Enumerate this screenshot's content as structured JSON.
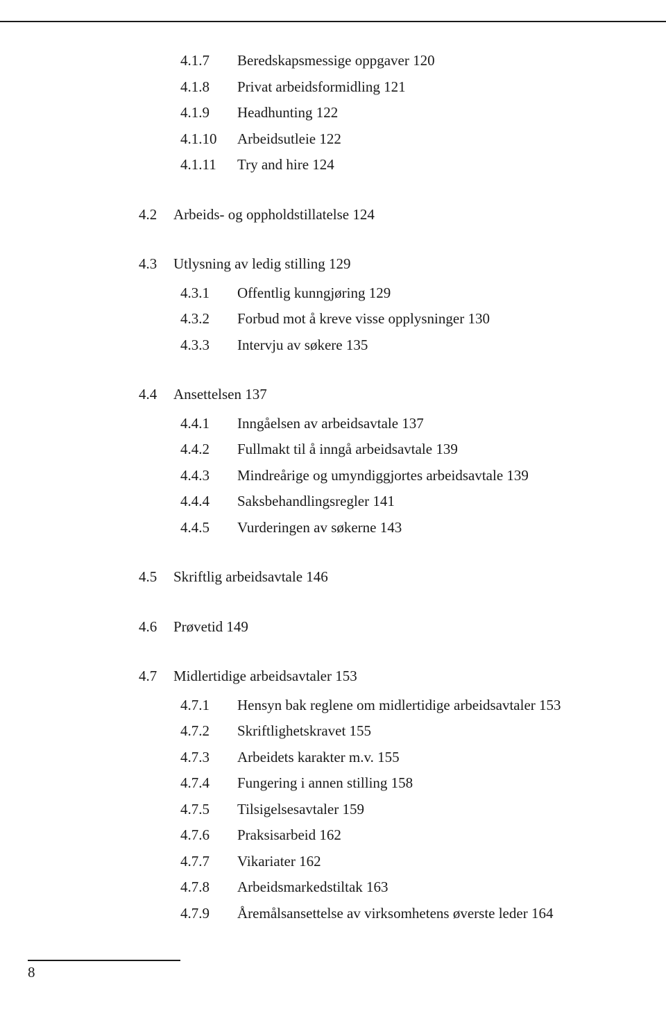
{
  "page_number": "8",
  "sections": [
    {
      "num": "",
      "title": "",
      "subs": [
        {
          "num": "4.1.7",
          "title": "Beredskapsmessige oppgaver 120"
        },
        {
          "num": "4.1.8",
          "title": "Privat arbeidsformidling 121"
        },
        {
          "num": "4.1.9",
          "title": "Headhunting 122"
        },
        {
          "num": "4.1.10",
          "title": "Arbeidsutleie 122"
        },
        {
          "num": "4.1.11",
          "title": "Try and hire 124"
        }
      ]
    },
    {
      "num": "4.2",
      "title": "Arbeids- og oppholdstillatelse 124",
      "subs": []
    },
    {
      "num": "4.3",
      "title": "Utlysning av ledig stilling 129",
      "subs": [
        {
          "num": "4.3.1",
          "title": "Offentlig kunngjøring 129"
        },
        {
          "num": "4.3.2",
          "title": "Forbud mot å kreve visse opplysninger 130"
        },
        {
          "num": "4.3.3",
          "title": "Intervju av søkere 135"
        }
      ]
    },
    {
      "num": "4.4",
      "title": "Ansettelsen 137",
      "subs": [
        {
          "num": "4.4.1",
          "title": "Inngåelsen av arbeidsavtale 137"
        },
        {
          "num": "4.4.2",
          "title": "Fullmakt til å inngå arbeidsavtale 139"
        },
        {
          "num": "4.4.3",
          "title": "Mindreårige og umyndiggjortes arbeidsavtale 139"
        },
        {
          "num": "4.4.4",
          "title": "Saksbehandlingsregler 141"
        },
        {
          "num": "4.4.5",
          "title": "Vurderingen av søkerne 143"
        }
      ]
    },
    {
      "num": "4.5",
      "title": "Skriftlig arbeidsavtale 146",
      "subs": []
    },
    {
      "num": "4.6",
      "title": "Prøvetid 149",
      "subs": []
    },
    {
      "num": "4.7",
      "title": "Midlertidige arbeidsavtaler 153",
      "subs": [
        {
          "num": "4.7.1",
          "title": "Hensyn bak reglene om midlertidige arbeidsavtaler 153"
        },
        {
          "num": "4.7.2",
          "title": "Skriftlighetskravet 155"
        },
        {
          "num": "4.7.3",
          "title": "Arbeidets karakter m.v. 155"
        },
        {
          "num": "4.7.4",
          "title": "Fungering i annen stilling 158"
        },
        {
          "num": "4.7.5",
          "title": "Tilsigelsesavtaler 159"
        },
        {
          "num": "4.7.6",
          "title": "Praksisarbeid 162"
        },
        {
          "num": "4.7.7",
          "title": "Vikariater 162"
        },
        {
          "num": "4.7.8",
          "title": "Arbeidsmarkedstiltak 163"
        },
        {
          "num": "4.7.9",
          "title": "Åremålsansettelse av virksomhetens øverste leder 164"
        }
      ]
    }
  ]
}
